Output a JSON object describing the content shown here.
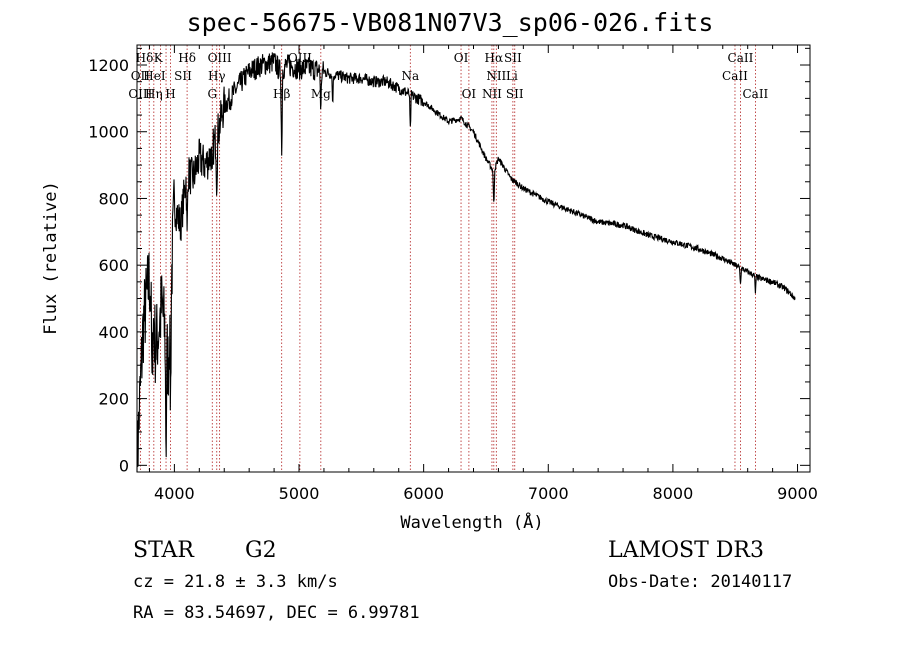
{
  "title": "spec-56675-VB081N07V3_sp06-026.fits",
  "chart_data": {
    "type": "line",
    "title": "spec-56675-VB081N07V3_sp06-026.fits",
    "xlabel": "Wavelength (Å)",
    "ylabel": "Flux (relative)",
    "xlim": [
      3700,
      9100
    ],
    "ylim": [
      -20,
      1260
    ],
    "x_ticks": [
      4000,
      5000,
      6000,
      7000,
      8000,
      9000
    ],
    "y_ticks": [
      0,
      200,
      400,
      600,
      800,
      1000,
      1200
    ],
    "series": [
      {
        "name": "spectrum",
        "x": [
          3700,
          3750,
          3800,
          3850,
          3900,
          3950,
          4000,
          4050,
          4100,
          4150,
          4200,
          4250,
          4300,
          4350,
          4400,
          4450,
          4500,
          4600,
          4700,
          4800,
          4850,
          4900,
          5000,
          5100,
          5200,
          5300,
          5400,
          5500,
          5600,
          5700,
          5800,
          5900,
          6000,
          6100,
          6200,
          6300,
          6400,
          6500,
          6563,
          6600,
          6700,
          6800,
          6900,
          7000,
          7200,
          7400,
          7600,
          7800,
          8000,
          8200,
          8400,
          8500,
          8600,
          8700,
          8800,
          8900,
          8980
        ],
        "y": [
          0,
          420,
          560,
          350,
          480,
          300,
          780,
          720,
          880,
          860,
          920,
          900,
          940,
          1000,
          1080,
          1100,
          1130,
          1180,
          1200,
          1210,
          1180,
          1200,
          1190,
          1190,
          1180,
          1170,
          1160,
          1160,
          1150,
          1150,
          1130,
          1110,
          1090,
          1060,
          1030,
          1040,
          1000,
          920,
          880,
          920,
          860,
          830,
          810,
          790,
          760,
          730,
          720,
          690,
          670,
          650,
          620,
          600,
          580,
          560,
          550,
          530,
          500
        ]
      }
    ],
    "line_labels": [
      {
        "text": "Hδ",
        "x": 3760,
        "row": 0
      },
      {
        "text": "K",
        "x": 3870,
        "row": 0
      },
      {
        "text": "Hδ",
        "x": 4102,
        "row": 0
      },
      {
        "text": "OIII",
        "x": 4363,
        "row": 0
      },
      {
        "text": "OIII",
        "x": 5007,
        "row": 0
      },
      {
        "text": "OI",
        "x": 6300,
        "row": 0
      },
      {
        "text": "Hα",
        "x": 6563,
        "row": 0
      },
      {
        "text": "SII",
        "x": 6716,
        "row": 0
      },
      {
        "text": "CaII",
        "x": 8542,
        "row": 0
      },
      {
        "text": "OII",
        "x": 3727,
        "row": 1
      },
      {
        "text": "HeI",
        "x": 3840,
        "row": 1
      },
      {
        "text": "SII",
        "x": 4069,
        "row": 1
      },
      {
        "text": "Hγ",
        "x": 4340,
        "row": 1
      },
      {
        "text": "Na",
        "x": 5893,
        "row": 1
      },
      {
        "text": "NII",
        "x": 6583,
        "row": 1
      },
      {
        "text": "Li",
        "x": 6708,
        "row": 1
      },
      {
        "text": "CaII",
        "x": 8498,
        "row": 1
      },
      {
        "text": "OIII",
        "x": 3727,
        "row": 2
      },
      {
        "text": "Hη",
        "x": 3835,
        "row": 2
      },
      {
        "text": "H",
        "x": 3969,
        "row": 2
      },
      {
        "text": "G",
        "x": 4304,
        "row": 2
      },
      {
        "text": "Hβ",
        "x": 4861,
        "row": 2
      },
      {
        "text": "Mg",
        "x": 5175,
        "row": 2
      },
      {
        "text": "OI",
        "x": 6363,
        "row": 2
      },
      {
        "text": "NII",
        "x": 6548,
        "row": 2
      },
      {
        "text": "SII",
        "x": 6731,
        "row": 2
      },
      {
        "text": "CaII",
        "x": 8662,
        "row": 2
      }
    ],
    "line_markers": [
      3727,
      3798,
      3835,
      3889,
      3933,
      3969,
      4102,
      4304,
      4340,
      4363,
      4861,
      5007,
      5175,
      5893,
      6300,
      6363,
      6548,
      6563,
      6583,
      6716,
      6731,
      8498,
      8542,
      8662
    ]
  },
  "info": {
    "object_class": "STAR",
    "subclass": "G2",
    "survey": "LAMOST DR3",
    "cz": "cz = 21.8 ± 3.3 km/s",
    "obs_date": "Obs-Date: 20140117",
    "radec": "RA =  83.54697, DEC =   6.99781"
  }
}
